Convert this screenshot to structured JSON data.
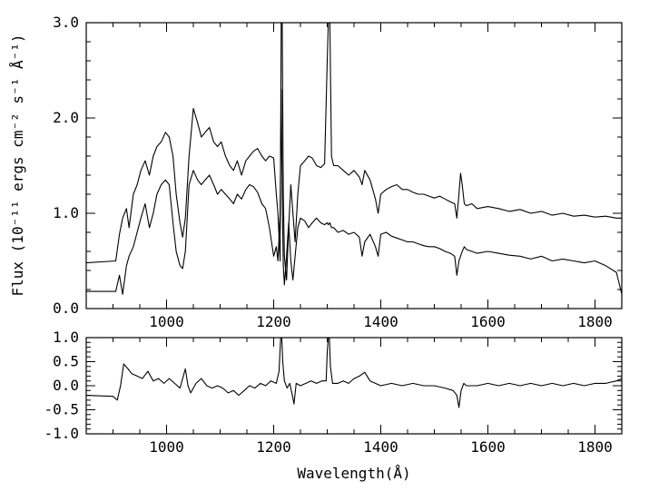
{
  "chart_data": [
    {
      "panel": "top",
      "type": "line",
      "xlabel": "",
      "ylabel": "Flux (10⁻¹¹ ergs cm⁻² s⁻¹ Å⁻¹)",
      "xlim": [
        850,
        1850
      ],
      "ylim": [
        0.0,
        3.0
      ],
      "x_ticks": [
        1000,
        1200,
        1400,
        1600,
        1800
      ],
      "x_tick_labels": [
        "1000",
        "1200",
        "1400",
        "1600",
        "1800"
      ],
      "y_ticks": [
        0.0,
        1.0,
        2.0,
        3.0
      ],
      "y_tick_labels": [
        "0.0",
        "1.0",
        "2.0",
        "3.0"
      ],
      "grid": false,
      "series": [
        {
          "x": [
            850,
            905,
            912,
            918,
            925,
            930,
            938,
            945,
            952,
            960,
            968,
            975,
            982,
            990,
            998,
            1005,
            1012,
            1018,
            1025,
            1030,
            1035,
            1042,
            1050,
            1058,
            1065,
            1072,
            1080,
            1088,
            1095,
            1102,
            1110,
            1118,
            1125,
            1132,
            1140,
            1148,
            1155,
            1162,
            1170,
            1178,
            1185,
            1192,
            1200,
            1205,
            1208,
            1212,
            1214,
            1216,
            1218,
            1220,
            1224,
            1228,
            1232,
            1236,
            1240,
            1245,
            1250,
            1258,
            1265,
            1272,
            1280,
            1288,
            1295,
            1300,
            1302,
            1305,
            1308,
            1312,
            1320,
            1330,
            1340,
            1350,
            1360,
            1365,
            1370,
            1380,
            1390,
            1395,
            1400,
            1410,
            1420,
            1430,
            1440,
            1450,
            1460,
            1470,
            1480,
            1490,
            1500,
            1510,
            1520,
            1530,
            1538,
            1542,
            1546,
            1549,
            1552,
            1556,
            1560,
            1570,
            1580,
            1600,
            1620,
            1640,
            1660,
            1680,
            1700,
            1720,
            1740,
            1760,
            1780,
            1800,
            1820,
            1840,
            1850
          ],
          "y": [
            0.48,
            0.5,
            0.78,
            0.95,
            1.05,
            0.85,
            1.2,
            1.3,
            1.45,
            1.55,
            1.4,
            1.6,
            1.7,
            1.75,
            1.85,
            1.8,
            1.6,
            1.2,
            0.9,
            0.75,
            0.95,
            1.6,
            2.1,
            1.95,
            1.8,
            1.85,
            1.9,
            1.75,
            1.7,
            1.75,
            1.6,
            1.5,
            1.45,
            1.55,
            1.4,
            1.55,
            1.6,
            1.65,
            1.68,
            1.6,
            1.55,
            1.6,
            1.58,
            1.2,
            1.0,
            0.5,
            3.0,
            3.0,
            1.2,
            0.55,
            0.3,
            0.85,
            1.3,
            1.0,
            0.7,
            1.2,
            1.5,
            1.55,
            1.6,
            1.58,
            1.5,
            1.48,
            1.52,
            2.6,
            3.0,
            3.0,
            1.6,
            1.5,
            1.5,
            1.45,
            1.4,
            1.45,
            1.38,
            1.3,
            1.45,
            1.35,
            1.15,
            1.0,
            1.2,
            1.25,
            1.28,
            1.3,
            1.25,
            1.25,
            1.22,
            1.2,
            1.2,
            1.18,
            1.16,
            1.18,
            1.15,
            1.12,
            1.1,
            0.95,
            1.2,
            1.42,
            1.3,
            1.1,
            1.08,
            1.1,
            1.05,
            1.07,
            1.05,
            1.02,
            1.04,
            1.0,
            1.02,
            0.98,
            1.0,
            0.97,
            0.98,
            0.96,
            0.97,
            0.95,
            0.95
          ]
        },
        {
          "x": [
            850,
            905,
            912,
            918,
            925,
            930,
            938,
            945,
            952,
            960,
            968,
            975,
            982,
            990,
            998,
            1005,
            1012,
            1018,
            1025,
            1030,
            1035,
            1042,
            1050,
            1058,
            1065,
            1072,
            1080,
            1088,
            1095,
            1102,
            1110,
            1118,
            1125,
            1132,
            1140,
            1148,
            1155,
            1162,
            1170,
            1178,
            1185,
            1192,
            1200,
            1205,
            1208,
            1212,
            1214,
            1216,
            1218,
            1220,
            1224,
            1228,
            1232,
            1236,
            1240,
            1245,
            1250,
            1258,
            1265,
            1272,
            1280,
            1288,
            1295,
            1300,
            1302,
            1305,
            1308,
            1312,
            1320,
            1330,
            1340,
            1350,
            1360,
            1365,
            1370,
            1380,
            1390,
            1395,
            1400,
            1410,
            1420,
            1430,
            1440,
            1450,
            1460,
            1470,
            1480,
            1490,
            1500,
            1510,
            1520,
            1530,
            1538,
            1542,
            1546,
            1549,
            1552,
            1556,
            1560,
            1570,
            1580,
            1600,
            1620,
            1640,
            1660,
            1680,
            1700,
            1720,
            1740,
            1760,
            1780,
            1800,
            1820,
            1840,
            1850
          ],
          "y": [
            0.18,
            0.18,
            0.35,
            0.15,
            0.45,
            0.55,
            0.65,
            0.8,
            0.95,
            1.1,
            0.85,
            1.0,
            1.2,
            1.3,
            1.35,
            1.3,
            0.9,
            0.6,
            0.45,
            0.42,
            0.6,
            1.3,
            1.45,
            1.35,
            1.3,
            1.35,
            1.4,
            1.3,
            1.2,
            1.25,
            1.2,
            1.15,
            1.1,
            1.2,
            1.15,
            1.25,
            1.3,
            1.28,
            1.22,
            1.1,
            1.05,
            0.85,
            0.55,
            0.65,
            0.5,
            1.0,
            2.3,
            1.2,
            0.45,
            0.25,
            0.55,
            0.9,
            0.5,
            0.3,
            0.55,
            0.85,
            0.95,
            0.92,
            0.85,
            0.9,
            0.95,
            0.9,
            0.88,
            0.9,
            0.88,
            0.9,
            0.85,
            0.85,
            0.8,
            0.82,
            0.78,
            0.8,
            0.75,
            0.55,
            0.7,
            0.78,
            0.65,
            0.55,
            0.78,
            0.8,
            0.76,
            0.74,
            0.72,
            0.7,
            0.7,
            0.68,
            0.66,
            0.65,
            0.65,
            0.63,
            0.6,
            0.58,
            0.55,
            0.35,
            0.5,
            0.55,
            0.6,
            0.65,
            0.62,
            0.6,
            0.58,
            0.6,
            0.58,
            0.56,
            0.55,
            0.52,
            0.55,
            0.5,
            0.52,
            0.5,
            0.48,
            0.5,
            0.45,
            0.38,
            0.15
          ]
        }
      ]
    },
    {
      "panel": "bottom",
      "type": "line",
      "xlabel": "Wavelength(Å)",
      "ylabel": "",
      "xlim": [
        850,
        1850
      ],
      "ylim": [
        -1.0,
        1.0
      ],
      "x_ticks": [
        1000,
        1200,
        1400,
        1600,
        1800
      ],
      "x_tick_labels": [
        "1000",
        "1200",
        "1400",
        "1600",
        "1800"
      ],
      "y_ticks": [
        1.0,
        0.5,
        0.0,
        -0.5,
        -1.0
      ],
      "y_tick_labels": [
        "1.0",
        "0.5",
        "0.0",
        "-0.5",
        "-1.0"
      ],
      "grid": false,
      "series": [
        {
          "x": [
            850,
            900,
            908,
            914,
            920,
            928,
            935,
            945,
            955,
            965,
            975,
            985,
            995,
            1005,
            1015,
            1025,
            1035,
            1040,
            1045,
            1055,
            1065,
            1075,
            1085,
            1095,
            1105,
            1115,
            1125,
            1135,
            1145,
            1155,
            1165,
            1175,
            1185,
            1195,
            1205,
            1210,
            1213,
            1215,
            1217,
            1220,
            1225,
            1230,
            1235,
            1238,
            1242,
            1250,
            1260,
            1270,
            1280,
            1290,
            1298,
            1300,
            1302,
            1304,
            1306,
            1310,
            1320,
            1330,
            1340,
            1350,
            1360,
            1370,
            1380,
            1390,
            1400,
            1420,
            1440,
            1460,
            1480,
            1500,
            1520,
            1535,
            1542,
            1546,
            1550,
            1555,
            1560,
            1580,
            1600,
            1620,
            1640,
            1660,
            1680,
            1700,
            1720,
            1740,
            1760,
            1780,
            1800,
            1820,
            1840,
            1850
          ],
          "y": [
            -0.2,
            -0.22,
            -0.3,
            0.0,
            0.45,
            0.35,
            0.25,
            0.2,
            0.15,
            0.3,
            0.1,
            0.15,
            0.05,
            0.15,
            0.05,
            -0.05,
            0.35,
            0.0,
            -0.15,
            0.05,
            0.15,
            0.0,
            -0.05,
            0.0,
            -0.05,
            -0.15,
            -0.1,
            -0.2,
            -0.1,
            0.0,
            -0.05,
            0.05,
            0.0,
            0.1,
            0.05,
            0.3,
            1.0,
            1.0,
            0.5,
            0.1,
            -0.05,
            0.05,
            -0.2,
            -0.38,
            0.05,
            0.0,
            0.05,
            0.1,
            0.05,
            0.1,
            0.1,
            0.7,
            1.0,
            1.0,
            0.4,
            0.05,
            0.05,
            0.1,
            0.05,
            0.15,
            0.2,
            0.28,
            0.1,
            0.05,
            0.0,
            0.05,
            0.0,
            0.05,
            0.0,
            0.0,
            -0.05,
            -0.1,
            -0.2,
            -0.45,
            -0.1,
            0.05,
            0.0,
            0.0,
            0.05,
            0.0,
            0.05,
            0.0,
            0.05,
            0.0,
            0.05,
            0.0,
            0.05,
            0.0,
            0.05,
            0.05,
            0.1,
            0.15
          ]
        }
      ]
    }
  ]
}
